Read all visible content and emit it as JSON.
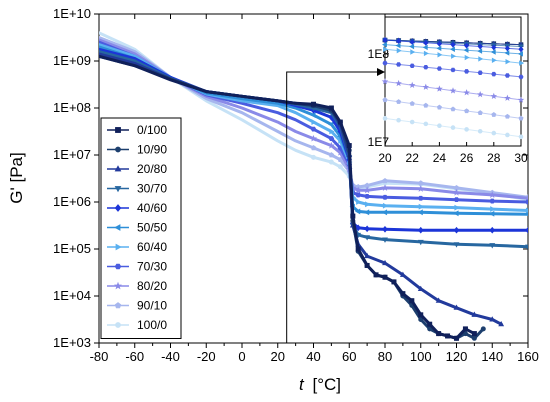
{
  "chart_data": {
    "type": "line",
    "xlabel_italic": "t",
    "xlabel_unit": "[°C]",
    "ylabel": "G' [Pa]",
    "xlim": [
      -80,
      160
    ],
    "ylim_log10": [
      3,
      10
    ],
    "x_ticks": [
      "-80",
      "-60",
      "-40",
      "-20",
      "0",
      "20",
      "40",
      "60",
      "80",
      "100",
      "120",
      "140",
      "160"
    ],
    "y_ticks": [
      "1E+03",
      "1E+04",
      "1E+05",
      "1E+06",
      "1E+07",
      "1E+08",
      "1E+09",
      "1E+10"
    ],
    "legend_position": "bottom-left",
    "series": [
      {
        "name": "0/100",
        "color": "#10205a",
        "marker": "square",
        "x": [
          -80,
          -60,
          -40,
          -20,
          0,
          20,
          30,
          40,
          50,
          55,
          60,
          62,
          65,
          70,
          75,
          80,
          85,
          90,
          95,
          100,
          105,
          110,
          115,
          120,
          125,
          130
        ],
        "log_g": [
          9.1,
          8.9,
          8.6,
          8.35,
          8.25,
          8.15,
          8.1,
          8.08,
          8.0,
          7.7,
          7.2,
          5.7,
          5.0,
          4.65,
          4.45,
          4.4,
          4.3,
          4.05,
          3.9,
          3.6,
          3.4,
          3.2,
          3.15,
          3.1,
          3.3,
          3.2
        ]
      },
      {
        "name": "10/90",
        "color": "#1d3f6e",
        "marker": "circle",
        "x": [
          -80,
          -60,
          -40,
          -20,
          0,
          20,
          30,
          40,
          50,
          55,
          60,
          62,
          65,
          70,
          75,
          80,
          85,
          90,
          95,
          100,
          105,
          110,
          115,
          120,
          125,
          130,
          135
        ],
        "log_g": [
          9.1,
          8.9,
          8.62,
          8.35,
          8.25,
          8.15,
          8.1,
          8.05,
          7.95,
          7.7,
          7.1,
          5.6,
          4.95,
          4.65,
          4.45,
          4.4,
          4.3,
          4.0,
          3.8,
          3.5,
          3.3,
          3.2,
          3.15,
          3.1,
          3.2,
          3.1,
          3.3
        ]
      },
      {
        "name": "20/80",
        "color": "#223a9c",
        "marker": "triangle",
        "x": [
          -80,
          -60,
          -40,
          -20,
          0,
          20,
          30,
          40,
          50,
          55,
          60,
          62,
          65,
          70,
          80,
          90,
          100,
          110,
          120,
          130,
          140,
          145
        ],
        "log_g": [
          9.15,
          8.95,
          8.62,
          8.35,
          8.25,
          8.15,
          8.1,
          8.05,
          7.95,
          7.65,
          7.0,
          5.5,
          5.1,
          4.85,
          4.7,
          4.45,
          4.15,
          3.9,
          3.75,
          3.6,
          3.5,
          3.4
        ]
      },
      {
        "name": "30/70",
        "color": "#2767a0",
        "marker": "tri-down",
        "x": [
          -80,
          -60,
          -40,
          -20,
          0,
          20,
          30,
          40,
          50,
          55,
          60,
          62,
          65,
          70,
          80,
          100,
          120,
          140,
          160
        ],
        "log_g": [
          9.2,
          9.0,
          8.63,
          8.35,
          8.25,
          8.15,
          8.08,
          8.0,
          7.9,
          7.6,
          6.95,
          5.5,
          5.3,
          5.25,
          5.2,
          5.15,
          5.1,
          5.08,
          5.05
        ]
      },
      {
        "name": "40/60",
        "color": "#1c35d8",
        "marker": "diamond",
        "x": [
          -80,
          -60,
          -40,
          -20,
          0,
          20,
          30,
          40,
          50,
          55,
          60,
          62,
          65,
          70,
          80,
          100,
          120,
          140,
          160
        ],
        "log_g": [
          9.25,
          9.05,
          8.65,
          8.35,
          8.25,
          8.15,
          8.05,
          7.95,
          7.8,
          7.5,
          6.9,
          5.55,
          5.45,
          5.43,
          5.42,
          5.4,
          5.4,
          5.4,
          5.4
        ]
      },
      {
        "name": "50/50",
        "color": "#2e8fd8",
        "marker": "tri-left",
        "x": [
          -80,
          -60,
          -40,
          -20,
          0,
          20,
          30,
          40,
          50,
          55,
          60,
          62,
          65,
          70,
          80,
          100,
          120,
          140,
          160
        ],
        "log_g": [
          9.3,
          9.05,
          8.65,
          8.32,
          8.2,
          8.1,
          8.0,
          7.85,
          7.65,
          7.4,
          6.9,
          5.9,
          5.8,
          5.78,
          5.78,
          5.78,
          5.76,
          5.75,
          5.74
        ]
      },
      {
        "name": "60/40",
        "color": "#5ab0f0",
        "marker": "tri-right",
        "x": [
          -80,
          -60,
          -40,
          -20,
          0,
          20,
          30,
          40,
          50,
          55,
          60,
          62,
          65,
          70,
          80,
          100,
          120,
          140,
          160
        ],
        "log_g": [
          9.35,
          9.1,
          8.65,
          8.3,
          8.15,
          8.05,
          7.9,
          7.7,
          7.5,
          7.3,
          6.85,
          6.1,
          6.0,
          5.95,
          5.92,
          5.9,
          5.88,
          5.85,
          5.82
        ]
      },
      {
        "name": "70/30",
        "color": "#4a5ce0",
        "marker": "hexagon",
        "x": [
          -80,
          -60,
          -40,
          -20,
          0,
          20,
          30,
          40,
          50,
          55,
          60,
          62,
          65,
          70,
          80,
          100,
          120,
          140,
          160
        ],
        "log_g": [
          9.4,
          9.1,
          8.65,
          8.28,
          8.1,
          7.9,
          7.75,
          7.55,
          7.35,
          7.15,
          6.8,
          6.2,
          6.15,
          6.12,
          6.1,
          6.08,
          6.05,
          6.02,
          6.0
        ]
      },
      {
        "name": "80/20",
        "color": "#8a8ae8",
        "marker": "star",
        "x": [
          -80,
          -60,
          -40,
          -20,
          0,
          20,
          30,
          40,
          50,
          55,
          60,
          62,
          65,
          70,
          80,
          100,
          120,
          140,
          160
        ],
        "log_g": [
          9.45,
          9.15,
          8.65,
          8.25,
          8.0,
          7.7,
          7.5,
          7.35,
          7.2,
          7.05,
          6.7,
          6.3,
          6.25,
          6.25,
          6.3,
          6.28,
          6.2,
          6.15,
          6.08
        ]
      },
      {
        "name": "90/10",
        "color": "#a6b6ee",
        "marker": "pentagon",
        "x": [
          -80,
          -60,
          -40,
          -20,
          0,
          20,
          30,
          40,
          50,
          55,
          60,
          62,
          65,
          70,
          80,
          100,
          120,
          140,
          160
        ],
        "log_g": [
          9.5,
          9.2,
          8.65,
          8.2,
          7.9,
          7.5,
          7.3,
          7.15,
          7.0,
          6.9,
          6.65,
          6.35,
          6.32,
          6.35,
          6.45,
          6.4,
          6.3,
          6.2,
          6.1
        ]
      },
      {
        "name": "100/0",
        "color": "#c6e2f6",
        "marker": "circle",
        "x": [
          -80,
          -60,
          -40,
          -20,
          0,
          20,
          30,
          40,
          50,
          55,
          60,
          62,
          65,
          70,
          80,
          100,
          120,
          140,
          160
        ],
        "log_g": [
          9.6,
          9.25,
          8.65,
          8.15,
          7.75,
          7.3,
          7.1,
          6.95,
          6.85,
          6.75,
          6.55,
          6.35,
          6.3,
          6.32,
          6.4,
          6.38,
          6.28,
          6.18,
          6.05
        ]
      }
    ],
    "inset": {
      "xlim": [
        20,
        30
      ],
      "ylim_log10": [
        7,
        8.4
      ],
      "x_ticks": [
        "20",
        "22",
        "24",
        "26",
        "28",
        "30"
      ],
      "y_ticks": [
        "1E7",
        "1E8"
      ],
      "source_x": 25
    }
  }
}
